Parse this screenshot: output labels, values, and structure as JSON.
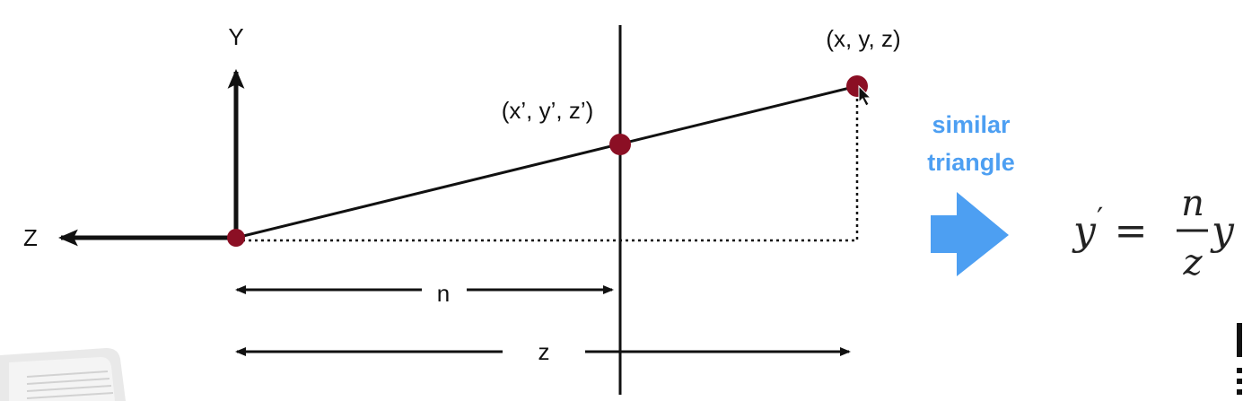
{
  "axes": {
    "y_label": "Y",
    "z_label": "Z"
  },
  "points": {
    "far_point": "(x, y, z)",
    "projected_point": "(x’, y’, z’)"
  },
  "distances": {
    "near_label": "n",
    "far_label": "z"
  },
  "note": {
    "line1": "similar",
    "line2": "triangle"
  },
  "formula": {
    "lhs": "y",
    "prime": "′",
    "equals": "=",
    "numerator": "n",
    "denominator": "z",
    "rhs_var": "y"
  },
  "colors": {
    "point_fill": "#8b0f24",
    "arrow_accent": "#4d9ff2",
    "line": "#111111"
  }
}
